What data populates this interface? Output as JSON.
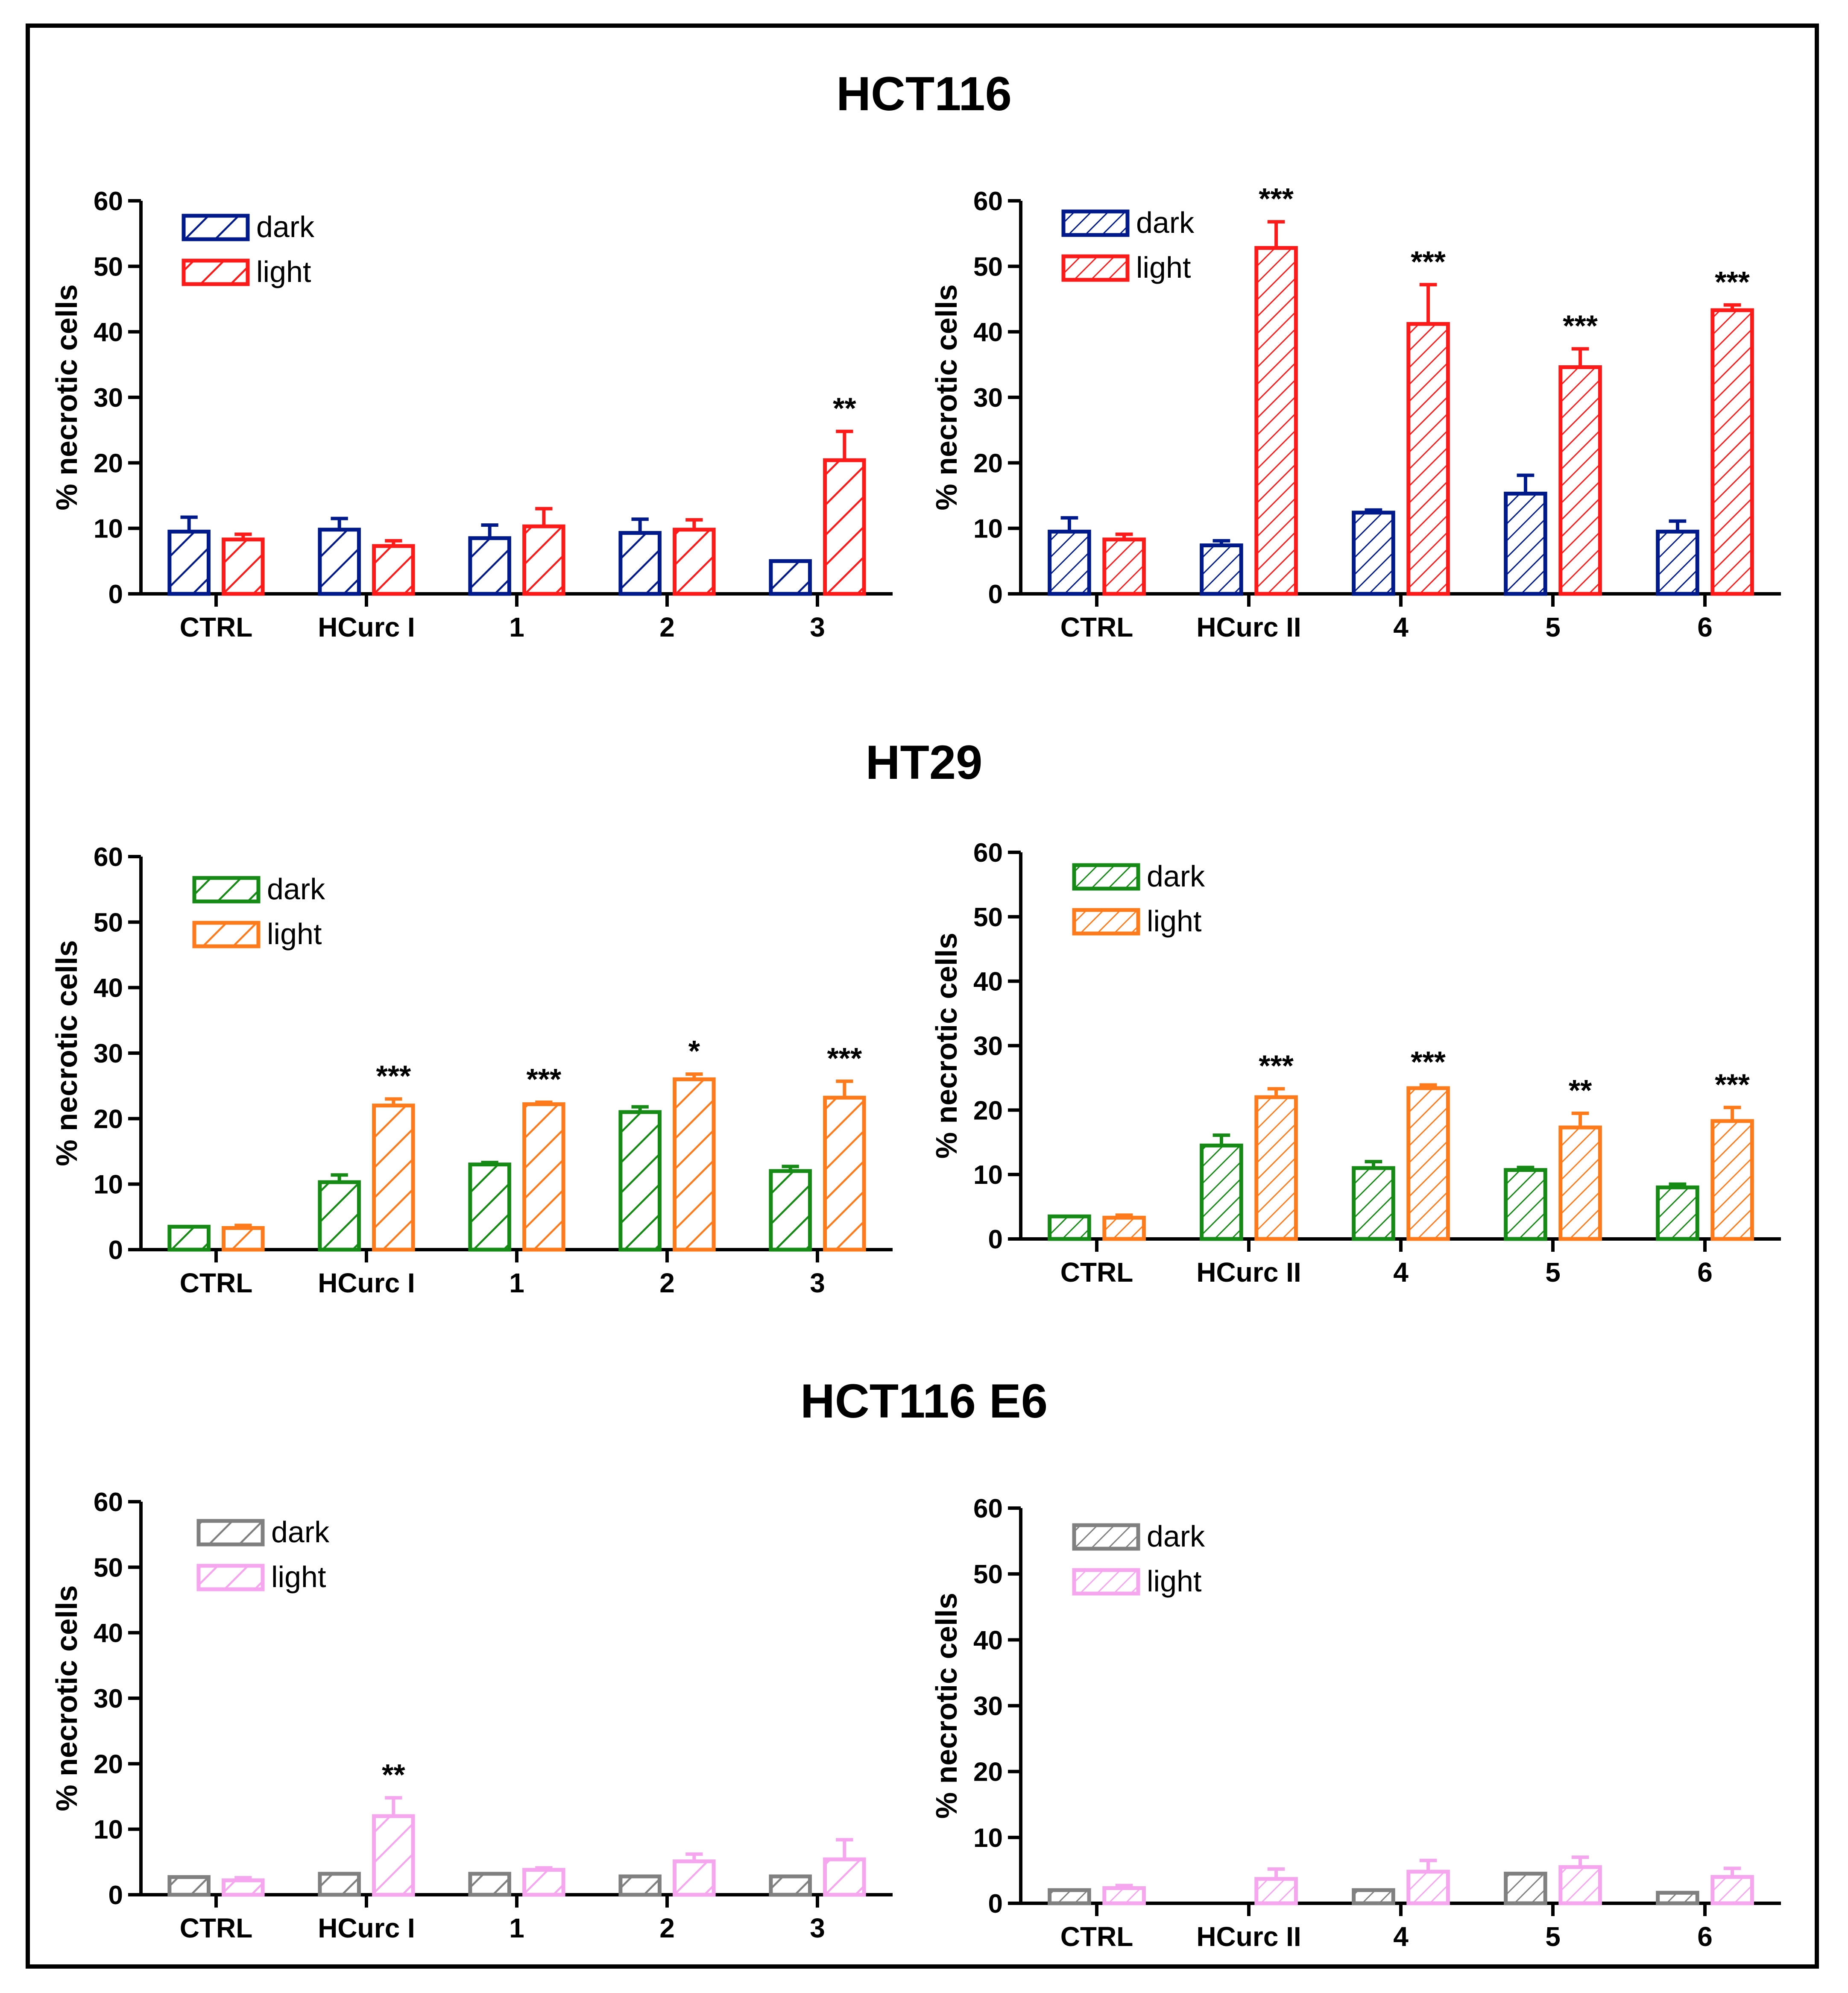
{
  "colors": {
    "HCT116": {
      "dark": "#001a8c",
      "light": "#ff1a1a"
    },
    "HT29": {
      "dark": "#158a15",
      "light": "#ff7a1a"
    },
    "HCT116 E6": {
      "dark": "#808080",
      "light": "#f6a6ee"
    }
  },
  "y_axis_label": "% necrotic cells",
  "legend": {
    "dark": "dark",
    "light": "light"
  },
  "section_titles": {
    "s0": "HCT116",
    "s1": "HT29",
    "s2": "HCT116 E6"
  },
  "chart_data": [
    {
      "id": "hct116-left",
      "type": "bar",
      "cell_line": "HCT116",
      "ylabel": "% necrotic cells",
      "ylim": [
        0,
        60
      ],
      "yticks": [
        0,
        10,
        20,
        30,
        40,
        50,
        60
      ],
      "categories": [
        "CTRL",
        "HCurc I",
        "1",
        "2",
        "3"
      ],
      "series": [
        {
          "name": "dark",
          "values": [
            9.5,
            9.8,
            8.5,
            9.3,
            5
          ],
          "errors": [
            2.2,
            1.7,
            2,
            2.1,
            0
          ]
        },
        {
          "name": "light",
          "values": [
            8.3,
            7.3,
            10.3,
            9.8,
            20.4
          ],
          "errors": [
            0.8,
            0.8,
            2.7,
            1.5,
            4.4
          ]
        }
      ],
      "annotations": [
        "",
        "",
        "",
        "",
        "**"
      ]
    },
    {
      "id": "hct116-right",
      "type": "bar",
      "cell_line": "HCT116",
      "ylabel": "% necrotic cells",
      "ylim": [
        0,
        60
      ],
      "yticks": [
        0,
        10,
        20,
        30,
        40,
        50,
        60
      ],
      "categories": [
        "CTRL",
        "HCurc II",
        "4",
        "5",
        "6"
      ],
      "series": [
        {
          "name": "dark",
          "values": [
            9.5,
            7.4,
            12.4,
            15.3,
            9.5
          ],
          "errors": [
            2.1,
            0.7,
            0.4,
            2.8,
            1.6
          ]
        },
        {
          "name": "light",
          "values": [
            8.3,
            52.8,
            41.2,
            34.6,
            43.3
          ],
          "errors": [
            0.8,
            4,
            6,
            2.8,
            0.8
          ]
        }
      ],
      "annotations": [
        "",
        "***",
        "***",
        "***",
        "***"
      ]
    },
    {
      "id": "ht29-left",
      "type": "bar",
      "cell_line": "HT29",
      "ylabel": "% necrotic cells",
      "ylim": [
        0,
        60
      ],
      "yticks": [
        0,
        10,
        20,
        30,
        40,
        50,
        60
      ],
      "categories": [
        "CTRL",
        "HCurc I",
        "1",
        "2",
        "3"
      ],
      "series": [
        {
          "name": "dark",
          "values": [
            3.5,
            10.3,
            13,
            21,
            12
          ],
          "errors": [
            0,
            1.1,
            0.3,
            0.8,
            0.7
          ]
        },
        {
          "name": "light",
          "values": [
            3.3,
            22,
            22.2,
            26,
            23.2
          ],
          "errors": [
            0.4,
            1,
            0.3,
            0.8,
            2.5
          ]
        }
      ],
      "annotations": [
        "",
        "***",
        "***",
        "*",
        "***"
      ]
    },
    {
      "id": "ht29-right",
      "type": "bar",
      "cell_line": "HT29",
      "ylabel": "% necrotic cells",
      "ylim": [
        0,
        60
      ],
      "yticks": [
        0,
        10,
        20,
        30,
        40,
        50,
        60
      ],
      "categories": [
        "CTRL",
        "HCurc II",
        "4",
        "5",
        "6"
      ],
      "series": [
        {
          "name": "dark",
          "values": [
            3.5,
            14.5,
            11,
            10.7,
            8
          ],
          "errors": [
            0,
            1.6,
            1,
            0.4,
            0.5
          ]
        },
        {
          "name": "light",
          "values": [
            3.3,
            22,
            23.4,
            17.3,
            18.3
          ],
          "errors": [
            0.4,
            1.3,
            0.5,
            2.2,
            2.1
          ]
        }
      ],
      "annotations": [
        "",
        "***",
        "***",
        "**",
        "***"
      ]
    },
    {
      "id": "hct116e6-left",
      "type": "bar",
      "cell_line": "HCT116 E6",
      "ylabel": "% necrotic cells",
      "ylim": [
        0,
        60
      ],
      "yticks": [
        0,
        10,
        20,
        30,
        40,
        50,
        60
      ],
      "categories": [
        "CTRL",
        "HCurc I",
        "1",
        "2",
        "3"
      ],
      "series": [
        {
          "name": "dark",
          "values": [
            2.7,
            3.2,
            3.2,
            2.8,
            2.8
          ],
          "errors": [
            0,
            0,
            0,
            0,
            0
          ]
        },
        {
          "name": "light",
          "values": [
            2.2,
            12,
            3.8,
            5.1,
            5.4
          ],
          "errors": [
            0.4,
            2.8,
            0.3,
            1.1,
            3
          ]
        }
      ],
      "annotations": [
        "",
        "**",
        "",
        "",
        ""
      ]
    },
    {
      "id": "hct116e6-right",
      "type": "bar",
      "cell_line": "HCT116 E6",
      "ylabel": "% necrotic cells",
      "ylim": [
        0,
        60
      ],
      "yticks": [
        0,
        10,
        20,
        30,
        40,
        50,
        60
      ],
      "categories": [
        "CTRL",
        "HCurc II",
        "4",
        "5",
        "6"
      ],
      "series": [
        {
          "name": "dark",
          "values": [
            2,
            0,
            2,
            4.5,
            1.6
          ],
          "errors": [
            0,
            0,
            0,
            0,
            0
          ]
        },
        {
          "name": "light",
          "values": [
            2.3,
            3.7,
            4.8,
            5.5,
            4
          ],
          "errors": [
            0.4,
            1.5,
            1.7,
            1.5,
            1.3
          ]
        }
      ],
      "annotations": [
        "",
        "",
        "",
        "",
        ""
      ]
    }
  ]
}
